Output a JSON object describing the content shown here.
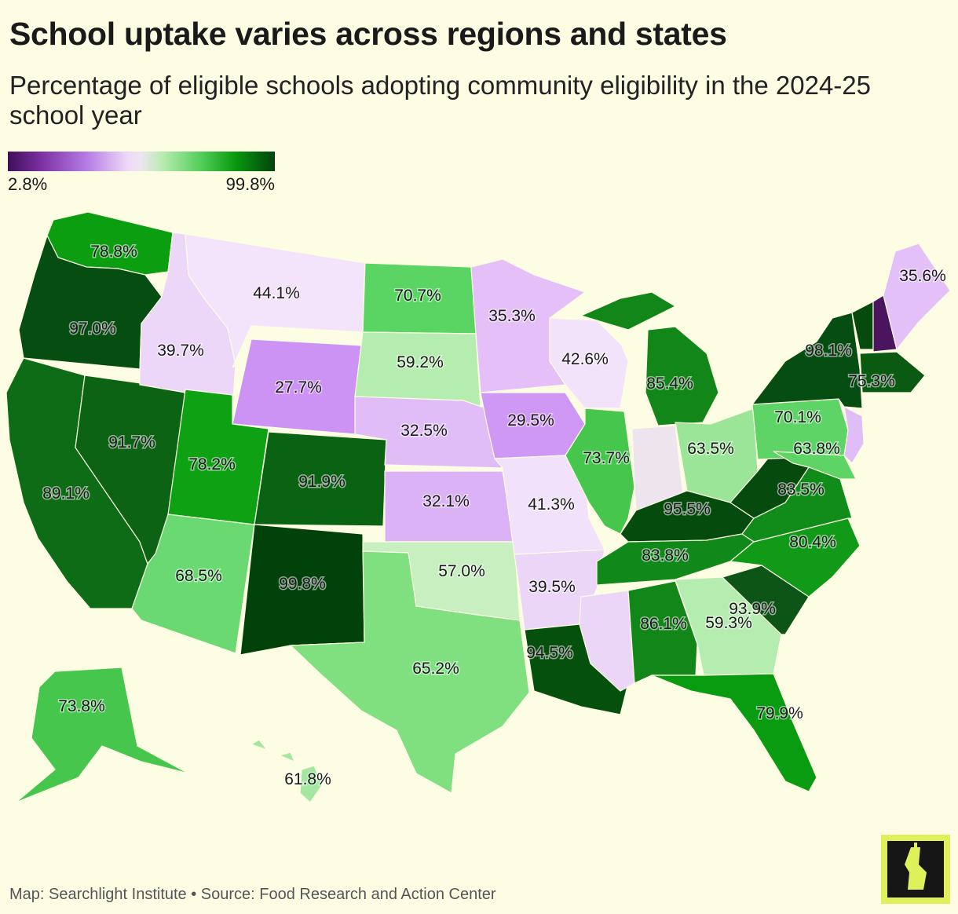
{
  "title": "School uptake varies across regions and states",
  "subtitle": "Percentage of eligible schools adopting community eligibility in the 2024-25 school year",
  "legend": {
    "min_label": "2.8%",
    "max_label": "99.8%",
    "min": 2.8,
    "max": 99.8,
    "colors": [
      "#3f0f59",
      "#b77fe6",
      "#ece6ef",
      "#55cf5c",
      "#00420a"
    ]
  },
  "states": [
    {
      "code": "WA",
      "label": "78.8%",
      "value": 78.8,
      "color": "#0a9e10"
    },
    {
      "code": "OR",
      "label": "97.0%",
      "value": 97.0,
      "color": "#054d10"
    },
    {
      "code": "CA",
      "label": "89.1%",
      "value": 89.1,
      "color": "#0f6c16"
    },
    {
      "code": "NV",
      "label": "91.7%",
      "value": 91.7,
      "color": "#0b6313"
    },
    {
      "code": "ID",
      "label": "39.7%",
      "value": 39.7,
      "color": "#ecd7f8"
    },
    {
      "code": "MT",
      "label": "44.1%",
      "value": 44.1,
      "color": "#f4e4fb"
    },
    {
      "code": "WY",
      "label": "27.7%",
      "value": 27.7,
      "color": "#cc93f4"
    },
    {
      "code": "UT",
      "label": "78.2%",
      "value": 78.2,
      "color": "#0da113"
    },
    {
      "code": "AZ",
      "label": "68.5%",
      "value": 68.5,
      "color": "#6ad972"
    },
    {
      "code": "CO",
      "label": "91.9%",
      "value": 91.9,
      "color": "#0a6213"
    },
    {
      "code": "NM",
      "label": "99.8%",
      "value": 99.8,
      "color": "#00420a"
    },
    {
      "code": "ND",
      "label": "70.7%",
      "value": 70.7,
      "color": "#5ad563"
    },
    {
      "code": "SD",
      "label": "59.2%",
      "value": 59.2,
      "color": "#b5ecb0"
    },
    {
      "code": "NE",
      "label": "32.5%",
      "value": 32.5,
      "color": "#e1bdf8"
    },
    {
      "code": "KS",
      "label": "32.1%",
      "value": 32.1,
      "color": "#dbb2f6"
    },
    {
      "code": "OK",
      "label": "57.0%",
      "value": 57.0,
      "color": "#c7efc0"
    },
    {
      "code": "TX",
      "label": "65.2%",
      "value": 65.2,
      "color": "#80e080"
    },
    {
      "code": "MN",
      "label": "35.3%",
      "value": 35.3,
      "color": "#e4bff8"
    },
    {
      "code": "IA",
      "label": "29.5%",
      "value": 29.5,
      "color": "#cf98f4"
    },
    {
      "code": "MO",
      "label": "41.3%",
      "value": 41.3,
      "color": "#f1e1fa"
    },
    {
      "code": "AR",
      "label": "39.5%",
      "value": 39.5,
      "color": "#ecd6f8"
    },
    {
      "code": "LA",
      "label": "94.5%",
      "value": 94.5,
      "color": "#06500e"
    },
    {
      "code": "WI",
      "label": "42.6%",
      "value": 42.6,
      "color": "#f3e3fa"
    },
    {
      "code": "IL",
      "label": "73.7%",
      "value": 73.7,
      "color": "#47c64e"
    },
    {
      "code": "MI",
      "label": "85.4%",
      "value": 85.4,
      "color": "#13861a"
    },
    {
      "code": "IN",
      "label": "",
      "value": null,
      "color": "#ede4ee"
    },
    {
      "code": "OH",
      "label": "63.5%",
      "value": 63.5,
      "color": "#9ae597"
    },
    {
      "code": "KY",
      "label": "95.5%",
      "value": 95.5,
      "color": "#054b0d"
    },
    {
      "code": "TN",
      "label": "83.8%",
      "value": 83.8,
      "color": "#10891a"
    },
    {
      "code": "MS",
      "label": "",
      "value": null,
      "color": "#ecd6f8"
    },
    {
      "code": "AL",
      "label": "86.1%",
      "value": 86.1,
      "color": "#138619"
    },
    {
      "code": "GA",
      "label": "59.3%",
      "value": 59.3,
      "color": "#b5ecb0"
    },
    {
      "code": "FL",
      "label": "79.9%",
      "value": 79.9,
      "color": "#0a9c10"
    },
    {
      "code": "SC",
      "label": "93.9%",
      "value": 93.9,
      "color": "#0c5516"
    },
    {
      "code": "NC",
      "label": "80.4%",
      "value": 80.4,
      "color": "#119a17"
    },
    {
      "code": "VA",
      "label": "83.5%",
      "value": 83.5,
      "color": "#118b19"
    },
    {
      "code": "WV",
      "label": "",
      "value": null,
      "color": "#064a0e"
    },
    {
      "code": "PA",
      "label": "70.1%",
      "value": 70.1,
      "color": "#5ed466"
    },
    {
      "code": "MD",
      "label": "63.8%",
      "value": 63.8,
      "color": "#5ed466"
    },
    {
      "code": "NJ",
      "label": "",
      "value": null,
      "color": "#e1bdf8"
    },
    {
      "code": "NY",
      "label": "98.1%",
      "value": 98.1,
      "color": "#054d10"
    },
    {
      "code": "MA",
      "label": "75.3%",
      "value": 75.3,
      "color": "#0a5a12"
    },
    {
      "code": "VT",
      "label": "",
      "value": null,
      "color": "#064a0e"
    },
    {
      "code": "NH",
      "label": "",
      "value": null,
      "color": "#4a145e"
    },
    {
      "code": "ME",
      "label": "35.6%",
      "value": 35.6,
      "color": "#e3c0f8"
    },
    {
      "code": "AK",
      "label": "73.8%",
      "value": 73.8,
      "color": "#47c64e"
    },
    {
      "code": "HI",
      "label": "61.8%",
      "value": 61.8,
      "color": "#a3e7a0"
    }
  ],
  "footer": "Map: Searchlight Institute • Source: Food Research and Action Center",
  "logo_icon": "searchlight-logo-icon"
}
